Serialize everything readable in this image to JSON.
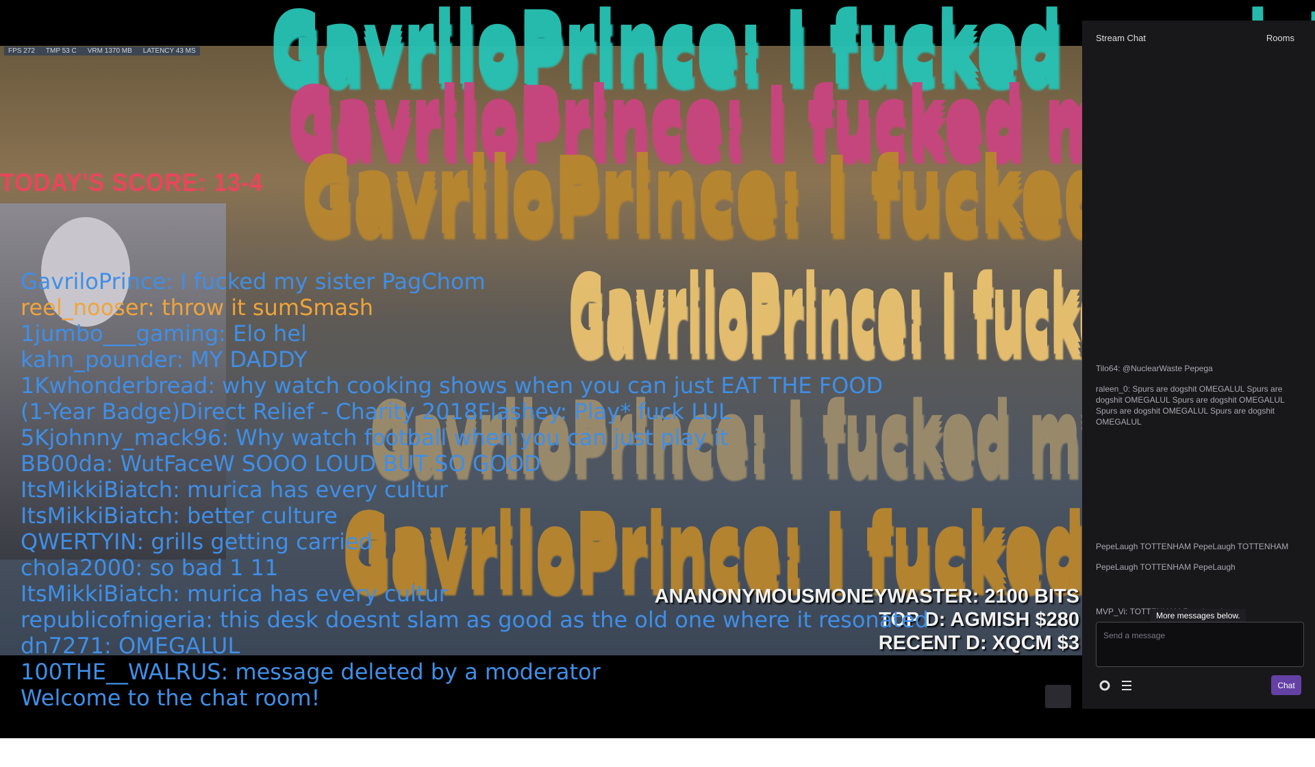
{
  "stream_overlay": {
    "stats": [
      "FPS 272",
      "TMP 53 C",
      "VRM 1370 MB",
      "LATENCY 43 MS"
    ],
    "score": "TODAY'S SCORE: 13-4",
    "donations": [
      "ANANONYMOUSMONEYWASTER: 2100 BITS",
      "TOP D: AGMISH $280",
      "RECENT D: XQCM $3"
    ]
  },
  "big_text": [
    {
      "text": "GavriloPrince: I fucked my sister PagChom",
      "color": "#27c2b4"
    },
    {
      "text": "GavriloPrince: I fucked my sister PagChom",
      "color": "#c8457f"
    },
    {
      "text": "GavriloPrince: I fucked my sister PagChom",
      "color": "#b8862f"
    },
    {
      "text": "GavriloPrince: I fucked my sister PagChom",
      "color": "#e9c170"
    },
    {
      "text": "GavriloPrince: I fucked my sister PagChom",
      "color": "#9c8c6c"
    },
    {
      "text": "GavriloPrince: I fucked my sister PagChom",
      "color": "#b8862f"
    }
  ],
  "overlay_chat": [
    {
      "text": "GavriloPrince: I fucked my sister PagChom",
      "color": "#3f8fe8"
    },
    {
      "text": "reel_nooser: throw it sumSmash",
      "color": "#f0a43a"
    },
    {
      "text": "1jumbo___gaming: Elo hel",
      "color": "#3f8fe8"
    },
    {
      "text": "kahn_pounder: MY DADDY",
      "color": "#3f8fe8"
    },
    {
      "text": "1Kwhonderbread: why watch cooking shows when you can just EAT THE FOOD",
      "color": "#3f8fe8"
    },
    {
      "text": " (1-Year Badge)Direct Relief - Charity 2018Flashey: Play* fuck LUL",
      "color": "#3f8fe8"
    },
    {
      "text": "5Kjohnny_mack96: Why watch football when you can just play it",
      "color": "#3f8fe8"
    },
    {
      "text": "BB00da: WutFaceW SOOO LOUD BUT SO GOOD",
      "color": "#3f8fe8"
    },
    {
      "text": "ItsMikkiBiatch: murica has every cultur",
      "color": "#3f8fe8"
    },
    {
      "text": "ItsMikkiBiatch: better culture",
      "color": "#3f8fe8"
    },
    {
      "text": "QWERTYIN: grills getting carried",
      "color": "#3f8fe8"
    },
    {
      "text": "chola2000: so bad 1 11",
      "color": "#3f8fe8"
    },
    {
      "text": "ItsMikkiBiatch: murica has every cultur",
      "color": "#3f8fe8"
    },
    {
      "text": "republicofnigeria: this desk doesnt slam as good as the old one where it resonated",
      "color": "#3f8fe8"
    },
    {
      "text": "dn7271: OMEGALUL",
      "color": "#3f8fe8"
    },
    {
      "text": "100THE__WALRUS: message deleted by a moderator",
      "color": "#3f8fe8"
    },
    {
      "text": "Welcome to the chat room!",
      "color": "#3f8fe8"
    }
  ],
  "chat_panel": {
    "title": "Stream Chat",
    "rooms": "Rooms",
    "messages": [
      "Tilo64: @NuclearWaste Pepega",
      "raleen_0: Spurs are dogshit OMEGALUL Spurs are dogshit OMEGALUL Spurs are dogshit OMEGALUL Spurs are dogshit OMEGALUL Spurs are dogshit OMEGALUL",
      "PepeLaugh TOTTENHAM PepeLaugh TOTTENHAM",
      "PepeLaugh TOTTENHAM PepeLaugh",
      "MVP_Vi: TOTTENHAM PepeLaugh"
    ],
    "more": "More messages below.",
    "placeholder": "Send a message",
    "button": "Chat"
  }
}
